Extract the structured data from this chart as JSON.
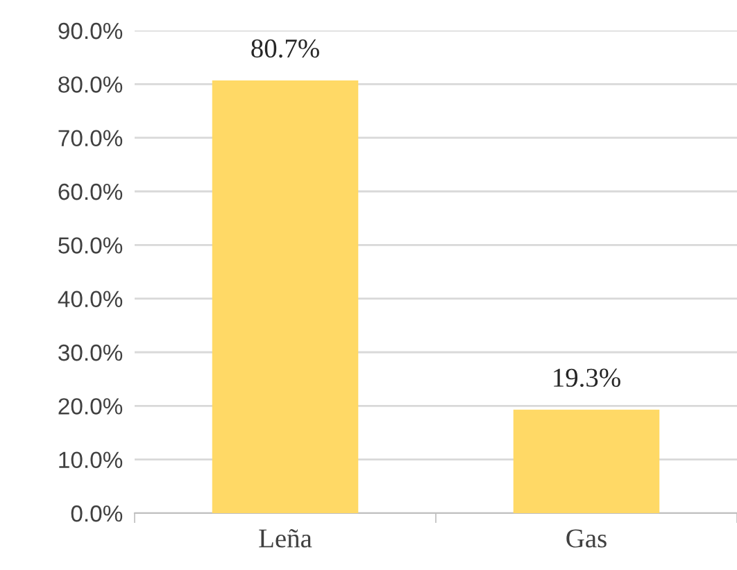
{
  "chart_data": {
    "type": "bar",
    "categories": [
      "Leña",
      "Gas"
    ],
    "values": [
      80.7,
      19.3
    ],
    "value_labels": [
      "80.7%",
      "19.3%"
    ],
    "color": "#ffd966",
    "ylim": [
      0,
      90
    ],
    "yticks": [
      {
        "value": 0,
        "label": "0.0%"
      },
      {
        "value": 10,
        "label": "10.0%"
      },
      {
        "value": 20,
        "label": "20.0%"
      },
      {
        "value": 30,
        "label": "30.0%"
      },
      {
        "value": 40,
        "label": "40.0%"
      },
      {
        "value": 50,
        "label": "50.0%"
      },
      {
        "value": 60,
        "label": "60.0%"
      },
      {
        "value": 70,
        "label": "70.0%"
      },
      {
        "value": 80,
        "label": "80.0%"
      },
      {
        "value": 90,
        "label": "90.0%"
      }
    ],
    "grid": "y",
    "legend": false
  }
}
